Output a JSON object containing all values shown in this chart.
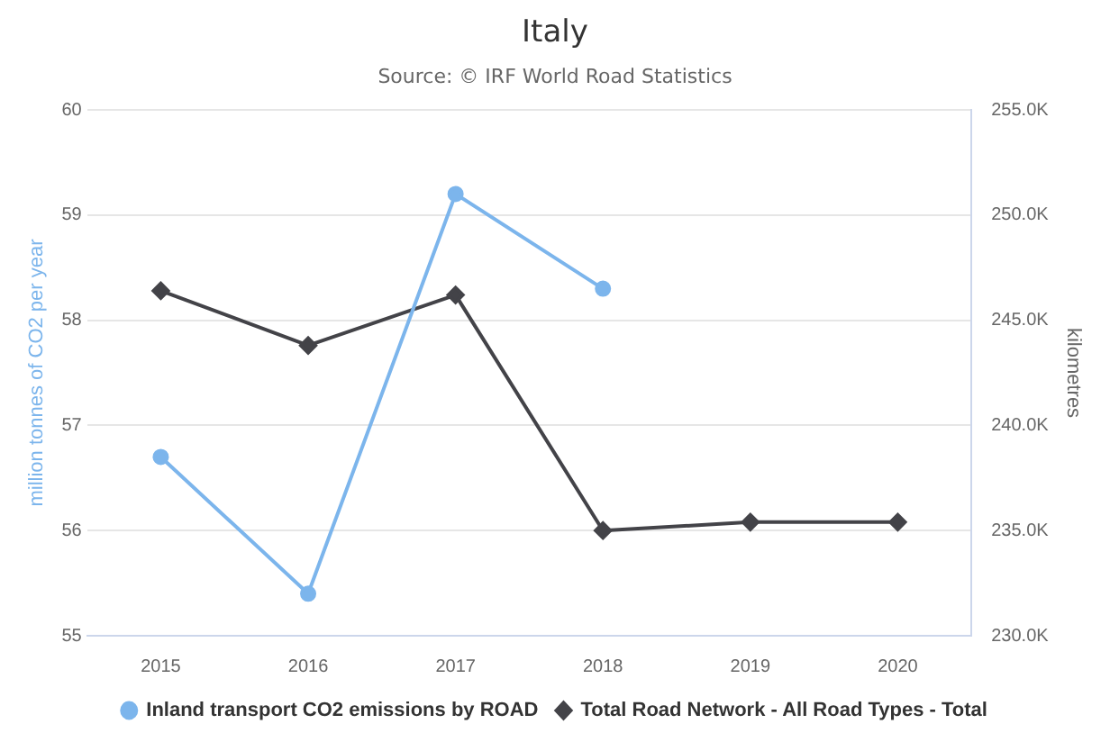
{
  "chart_data": {
    "type": "line",
    "title": "Italy",
    "subtitle": "Source: © IRF World Road Statistics",
    "ylabel": "million tonnes of CO2 per year",
    "y2label": "kilometres",
    "categories": [
      "2015",
      "2016",
      "2017",
      "2018",
      "2019",
      "2020"
    ],
    "series": [
      {
        "name": "Inland transport CO2 emissions by ROAD",
        "color": "#7cb5ec",
        "marker": "circle",
        "values": [
          56.7,
          55.4,
          59.2,
          58.3,
          null,
          null
        ]
      },
      {
        "name": "Total Road Network - All Road Types - Total",
        "color": "#434348",
        "marker": "diamond",
        "axis": "y2",
        "values": [
          246400,
          243800,
          246200,
          235000,
          235400,
          235400
        ]
      }
    ],
    "ylim": [
      55,
      60
    ],
    "yticks": [
      55,
      56,
      57,
      58,
      59,
      60
    ],
    "y2lim": [
      230000,
      255000
    ],
    "y2ticks": [
      {
        "value": 230000,
        "label": "230.0K"
      },
      {
        "value": 235000,
        "label": "235.0K"
      },
      {
        "value": 240000,
        "label": "240.0K"
      },
      {
        "value": 245000,
        "label": "245.0K"
      },
      {
        "value": 250000,
        "label": "250.0K"
      },
      {
        "value": 255000,
        "label": "255.0K"
      }
    ],
    "grid": "y",
    "legend": "bottom"
  }
}
